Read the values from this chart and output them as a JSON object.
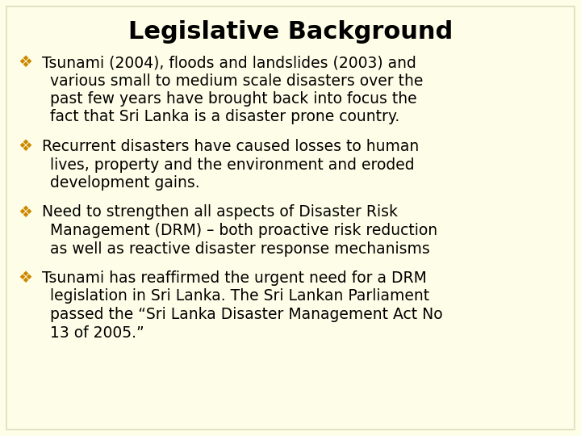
{
  "title": "Legislative Background",
  "title_fontsize": 22,
  "title_color": "#000000",
  "background_color": "#FEFEE8",
  "border_color": "#DDDDBB",
  "bullet_symbol": "❖",
  "bullet_color": "#CC8800",
  "text_color": "#000000",
  "font_family": "Comic Sans MS",
  "title_font_family": "Comic Sans MS",
  "bullet_fontsize": 13.5,
  "items": [
    {
      "first_line": "Tsunami (2004), floods and landslides (2003) and",
      "lines": [
        "various small to medium scale disasters over the",
        "past few years have brought back into focus the",
        "fact that Sri Lanka is a disaster prone country."
      ]
    },
    {
      "first_line": "Recurrent disasters have caused losses to human",
      "lines": [
        "lives, property and the environment and eroded",
        "development gains."
      ]
    },
    {
      "first_line": "Need to strengthen all aspects of Disaster Risk",
      "lines": [
        "Management (DRM) – both proactive risk reduction",
        "as well as reactive disaster response mechanisms"
      ]
    },
    {
      "first_line": "Tsunami has reaffirmed the urgent need for a DRM",
      "lines": [
        "legislation in Sri Lanka. The Sri Lankan Parliament",
        "passed the “Sri Lanka Disaster Management Act No",
        "13 of 2005.”"
      ]
    }
  ]
}
